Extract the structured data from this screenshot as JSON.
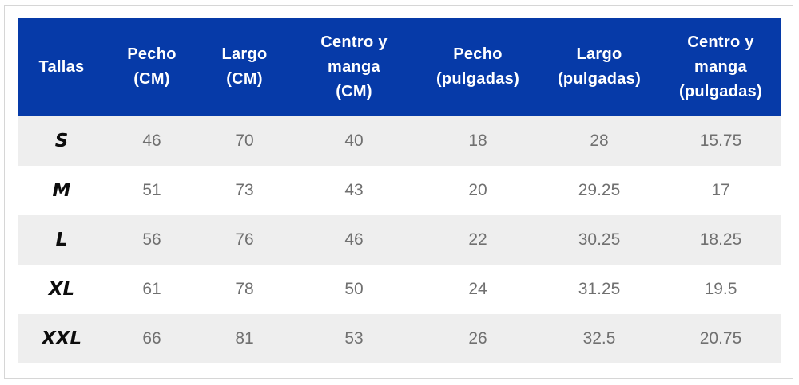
{
  "table": {
    "headers": [
      [
        "Tallas"
      ],
      [
        "Pecho",
        "(CM)"
      ],
      [
        "Largo",
        "(CM)"
      ],
      [
        "Centro y",
        "manga",
        "(CM)"
      ],
      [
        "Pecho",
        "(pulgadas)"
      ],
      [
        "Largo",
        "(pulgadas)"
      ],
      [
        "Centro y",
        "manga",
        "(pulgadas)"
      ]
    ],
    "rows": [
      [
        "S",
        "46",
        "70",
        "40",
        "18",
        "28",
        "15.75"
      ],
      [
        "M",
        "51",
        "73",
        "43",
        "20",
        "29.25",
        "17"
      ],
      [
        "L",
        "56",
        "76",
        "46",
        "22",
        "30.25",
        "18.25"
      ],
      [
        "XL",
        "61",
        "78",
        "50",
        "24",
        "31.25",
        "19.5"
      ],
      [
        "XXL",
        "66",
        "81",
        "53",
        "26",
        "32.5",
        "20.75"
      ]
    ]
  },
  "colors": {
    "header_bg": "#063aa8",
    "header_text": "#ffffff",
    "row_alt_bg": "#eeeeee",
    "value_text": "#707070",
    "size_text": "#0d0d0d"
  }
}
